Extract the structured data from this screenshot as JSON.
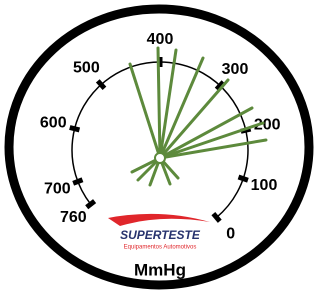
{
  "dial": {
    "labels": [
      "0",
      "100",
      "200",
      "300",
      "400",
      "500",
      "600",
      "700",
      "760"
    ]
  },
  "brand": {
    "name": "SUPERTESTE",
    "tagline": "Equipamentos Automotivos"
  },
  "unit": "MmHg"
}
